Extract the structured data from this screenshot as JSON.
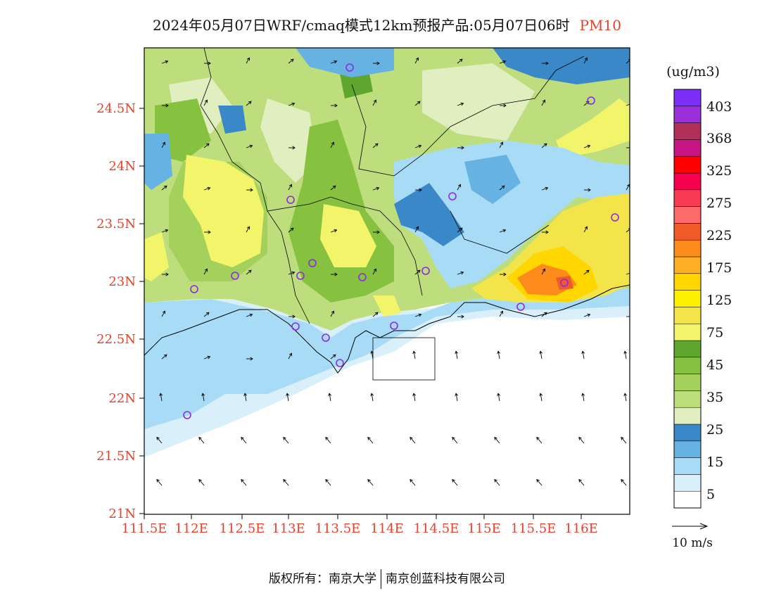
{
  "title": {
    "main": "2024年05月07日WRF/cmaq模式12km预报产品:05月07日06时",
    "pollutant": "PM10"
  },
  "units": "(ug/m3)",
  "lat_labels": [
    "24.5N",
    "24N",
    "23.5N",
    "23N",
    "22.5N",
    "22N",
    "21.5N",
    "21N"
  ],
  "lon_labels": [
    "111.5E",
    "112E",
    "112.5E",
    "113E",
    "113.5E",
    "114E",
    "114.5E",
    "115E",
    "115.5E",
    "116E"
  ],
  "legend": {
    "colors": [
      "#ffffff",
      "#d9f0fb",
      "#a8dcf6",
      "#66b2e2",
      "#3a88c8",
      "#e0eec0",
      "#bedd7c",
      "#a4d05c",
      "#86c140",
      "#5ea62e",
      "#f2f56a",
      "#f3e44a",
      "#fff100",
      "#ffd600",
      "#fdb026",
      "#fd8b1c",
      "#f05a28",
      "#fc6a6a",
      "#f73b55",
      "#f50050",
      "#ff0000",
      "#c71585",
      "#b0305a",
      "#9b30d9",
      "#7b2ff7"
    ],
    "labels": [
      "5",
      "15",
      "25",
      "35",
      "45",
      "75",
      "125",
      "175",
      "225",
      "275",
      "325",
      "368",
      "403"
    ]
  },
  "wind_ref": {
    "label": "10 m/s"
  },
  "footer": {
    "left": "版权所有：南京大学",
    "right": "南京创蓝科技有限公司"
  }
}
